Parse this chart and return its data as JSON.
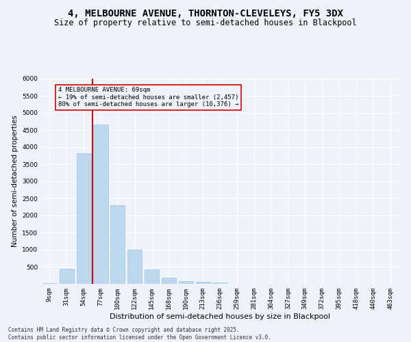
{
  "title": "4, MELBOURNE AVENUE, THORNTON-CLEVELEYS, FY5 3DX",
  "subtitle": "Size of property relative to semi-detached houses in Blackpool",
  "xlabel": "Distribution of semi-detached houses by size in Blackpool",
  "ylabel": "Number of semi-detached properties",
  "categories": [
    "9sqm",
    "31sqm",
    "54sqm",
    "77sqm",
    "100sqm",
    "122sqm",
    "145sqm",
    "168sqm",
    "190sqm",
    "213sqm",
    "236sqm",
    "259sqm",
    "281sqm",
    "304sqm",
    "327sqm",
    "349sqm",
    "372sqm",
    "395sqm",
    "418sqm",
    "440sqm",
    "463sqm"
  ],
  "values": [
    30,
    450,
    3820,
    4670,
    2300,
    1000,
    420,
    175,
    80,
    60,
    50,
    0,
    0,
    0,
    0,
    0,
    0,
    0,
    0,
    0,
    0
  ],
  "bar_color": "#bdd7ee",
  "bar_edge_color": "#9dc3e6",
  "vline_color": "#cc0000",
  "annotation_title": "4 MELBOURNE AVENUE: 69sqm",
  "annotation_line1": "← 19% of semi-detached houses are smaller (2,457)",
  "annotation_line2": "80% of semi-detached houses are larger (10,376) →",
  "annotation_box_color": "#cc0000",
  "ylim": [
    0,
    6000
  ],
  "yticks": [
    0,
    500,
    1000,
    1500,
    2000,
    2500,
    3000,
    3500,
    4000,
    4500,
    5000,
    5500,
    6000
  ],
  "footnote1": "Contains HM Land Registry data © Crown copyright and database right 2025.",
  "footnote2": "Contains public sector information licensed under the Open Government Licence v3.0.",
  "bg_color": "#eef2f9",
  "grid_color": "#ffffff",
  "title_fontsize": 10,
  "subtitle_fontsize": 8.5,
  "tick_fontsize": 6.5,
  "xlabel_fontsize": 8,
  "ylabel_fontsize": 7.5,
  "annotation_fontsize": 6.5,
  "footnote_fontsize": 5.5
}
